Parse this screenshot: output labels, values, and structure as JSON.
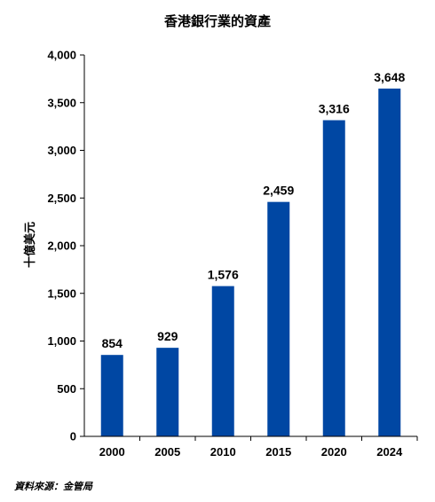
{
  "chart_data": {
    "type": "bar",
    "title": "香港銀行業的資產",
    "ylabel": "十億美元",
    "xlabel": "",
    "categories": [
      "2000",
      "2005",
      "2010",
      "2015",
      "2020",
      "2024"
    ],
    "values": [
      854,
      929,
      1576,
      2459,
      3316,
      3648
    ],
    "data_labels": [
      "854",
      "929",
      "1,576",
      "2,459",
      "3,316",
      "3,648"
    ],
    "ylim": [
      0,
      4000
    ],
    "yticks": [
      0,
      500,
      1000,
      1500,
      2000,
      2500,
      3000,
      3500,
      4000
    ],
    "ytick_labels": [
      "0",
      "500",
      "1,000",
      "1,500",
      "2,000",
      "2,500",
      "3,000",
      "3,500",
      "4,000"
    ],
    "bar_color": "#0047a3",
    "grid": false,
    "legend": "none"
  },
  "source_note": "資料來源：金管局"
}
